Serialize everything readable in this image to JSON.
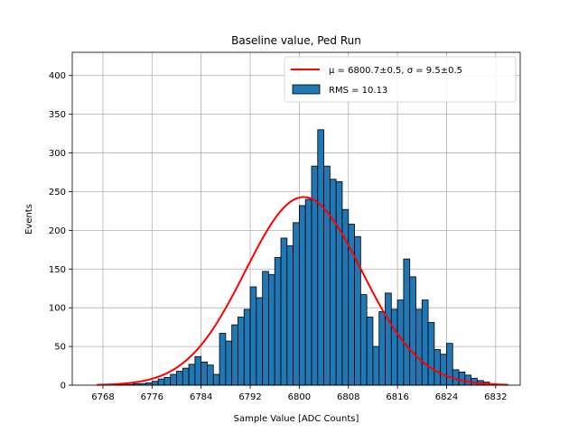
{
  "chart_data": {
    "type": "bar",
    "title": "Baseline value, Ped Run",
    "xlabel": "Sample Value [ADC Counts]",
    "ylabel": "Events",
    "xlim": [
      6763,
      6836
    ],
    "ylim": [
      0,
      430
    ],
    "grid": true,
    "legend_position": "top-right",
    "xticks": [
      6768,
      6776,
      6784,
      6792,
      6800,
      6808,
      6816,
      6824,
      6832
    ],
    "yticks": [
      0,
      50,
      100,
      150,
      200,
      250,
      300,
      350,
      400
    ],
    "histogram": {
      "name": "RMS = 10.13",
      "color": "#1f77b4",
      "edge_color": "#000000",
      "bin_width": 1,
      "bin_start": 6767,
      "counts": [
        0,
        0,
        0,
        1,
        1,
        1,
        2,
        2,
        3,
        5,
        8,
        10,
        14,
        18,
        22,
        27,
        37,
        30,
        26,
        14,
        67,
        57,
        78,
        88,
        98,
        127,
        113,
        147,
        143,
        165,
        190,
        180,
        210,
        232,
        240,
        283,
        330,
        283,
        266,
        263,
        227,
        208,
        192,
        117,
        88,
        50,
        95,
        119,
        98,
        110,
        163,
        140,
        98,
        110,
        81,
        46,
        40,
        54,
        20,
        17,
        13,
        9,
        6,
        4,
        2,
        1,
        1,
        0
      ]
    },
    "fit_curve": {
      "name": "μ = 6800.7±0.5, σ = 9.5±0.5",
      "color": "#ff0000",
      "mu": 6800.7,
      "sigma": 9.5,
      "amplitude": 243,
      "x_range": [
        6767,
        6834
      ]
    }
  }
}
